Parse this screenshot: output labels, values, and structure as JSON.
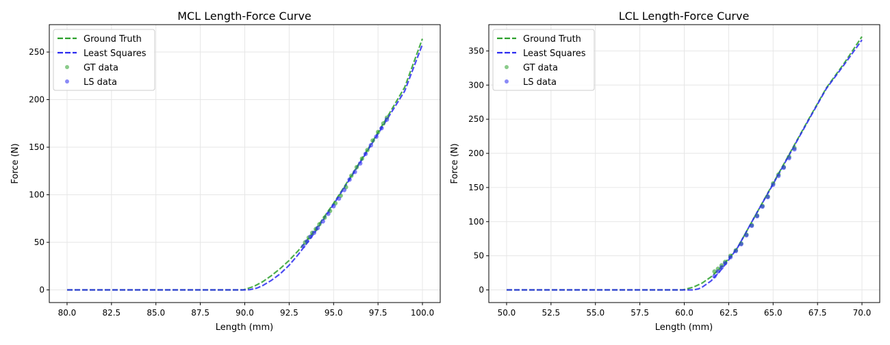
{
  "chart_data": [
    {
      "type": "line",
      "title": "MCL Length-Force Curve",
      "xlabel": "Length (mm)",
      "ylabel": "Force (N)",
      "xlim": [
        79.0,
        101.0
      ],
      "ylim": [
        -13.3,
        278.8
      ],
      "xticks": [
        80.0,
        82.5,
        85.0,
        87.5,
        90.0,
        92.5,
        95.0,
        97.5,
        100.0
      ],
      "yticks": [
        0,
        50,
        100,
        150,
        200,
        250
      ],
      "grid": true,
      "legend_position": "top-left",
      "series": [
        {
          "name": "Ground Truth",
          "kind": "dashed-line",
          "color": "#2ca02c",
          "x": [
            80.0,
            89.9,
            90.0,
            90.5,
            91.0,
            91.5,
            92.0,
            92.5,
            93.0,
            93.5,
            94.0,
            95.0,
            96.0,
            97.0,
            98.0,
            99.0,
            100.0
          ],
          "y": [
            0,
            0,
            0.5,
            3.5,
            8.5,
            15,
            22.5,
            31,
            41,
            52,
            64,
            91,
            120,
            150,
            181,
            213,
            264
          ]
        },
        {
          "name": "Least Squares",
          "kind": "dashed-line",
          "color": "#2b2bf0",
          "x": [
            80.0,
            90.0,
            90.3,
            90.7,
            91.0,
            91.5,
            92.0,
            92.5,
            93.0,
            93.5,
            94.0,
            95.0,
            96.0,
            97.0,
            98.0,
            99.0,
            100.0
          ],
          "y": [
            0,
            0,
            0.3,
            2.0,
            4.5,
            10,
            17,
            26,
            37,
            49,
            62,
            90,
            119,
            149,
            179,
            209,
            258
          ]
        },
        {
          "name": "GT data",
          "kind": "scatter",
          "color": "#2ca02c",
          "x": [
            93.4,
            93.6,
            93.8,
            94.0,
            94.2,
            94.5,
            94.8,
            95.1,
            95.4,
            95.7,
            96.0,
            96.3,
            96.6,
            96.9,
            97.2,
            97.5,
            97.8,
            98.0
          ],
          "y": [
            50,
            55,
            60,
            64,
            69,
            76,
            83,
            91,
            99,
            108,
            120,
            129,
            138,
            147,
            157,
            166,
            175,
            181
          ]
        },
        {
          "name": "LS data",
          "kind": "scatter",
          "color": "#2b2bf0",
          "x": [
            93.3,
            93.5,
            93.7,
            93.9,
            94.1,
            94.4,
            94.7,
            95.0,
            95.3,
            95.6,
            95.9,
            96.2,
            96.5,
            96.8,
            97.1,
            97.4,
            97.7,
            98.0
          ],
          "y": [
            46,
            51,
            56,
            60,
            65,
            72,
            80,
            88,
            96,
            105,
            116,
            124,
            133,
            143,
            152,
            161,
            170,
            179
          ]
        }
      ]
    },
    {
      "type": "line",
      "title": "LCL Length-Force Curve",
      "xlabel": "Length (mm)",
      "ylabel": "Force (N)",
      "xlim": [
        49.0,
        71.0
      ],
      "ylim": [
        -18.5,
        388.5
      ],
      "xticks": [
        50.0,
        52.5,
        55.0,
        57.5,
        60.0,
        62.5,
        65.0,
        67.5,
        70.0
      ],
      "yticks": [
        0,
        50,
        100,
        150,
        200,
        250,
        300,
        350
      ],
      "grid": true,
      "legend_position": "top-left",
      "series": [
        {
          "name": "Ground Truth",
          "kind": "dashed-line",
          "color": "#2ca02c",
          "x": [
            50.0,
            59.9,
            60.0,
            60.5,
            61.0,
            61.5,
            62.0,
            62.5,
            63.0,
            64.0,
            65.0,
            66.0,
            67.0,
            68.0,
            69.0,
            70.0
          ],
          "y": [
            0,
            0,
            0.5,
            4,
            10,
            19,
            31,
            46,
            62,
            109,
            156,
            203,
            250,
            296,
            332,
            371
          ]
        },
        {
          "name": "Least Squares",
          "kind": "dashed-line",
          "color": "#2b2bf0",
          "x": [
            50.0,
            60.5,
            60.8,
            61.0,
            61.5,
            62.0,
            62.5,
            63.0,
            64.0,
            65.0,
            66.0,
            67.0,
            68.0,
            69.0,
            70.0
          ],
          "y": [
            0,
            0,
            1.5,
            4,
            13,
            27,
            44,
            62,
            109,
            155,
            202,
            249,
            295,
            330,
            366
          ]
        },
        {
          "name": "GT data",
          "kind": "scatter",
          "color": "#2ca02c",
          "x": [
            61.7,
            61.9,
            62.1,
            62.3,
            62.6,
            62.9,
            63.2,
            63.5,
            63.8,
            64.1,
            64.4,
            64.7,
            65.0,
            65.3,
            65.6,
            65.9,
            66.2
          ],
          "y": [
            27,
            31,
            36,
            41,
            50,
            58,
            68,
            81,
            95,
            109,
            123,
            137,
            156,
            169,
            180,
            195,
            208
          ]
        },
        {
          "name": "LS data",
          "kind": "scatter",
          "color": "#2b2bf0",
          "x": [
            61.7,
            61.9,
            62.1,
            62.3,
            62.6,
            62.9,
            63.2,
            63.5,
            63.8,
            64.1,
            64.4,
            64.7,
            65.0,
            65.3,
            65.6,
            65.9,
            66.2
          ],
          "y": [
            20,
            27,
            33,
            39,
            48,
            57,
            67,
            80,
            94,
            108,
            122,
            136,
            154,
            167,
            179,
            193,
            206
          ]
        }
      ]
    }
  ]
}
